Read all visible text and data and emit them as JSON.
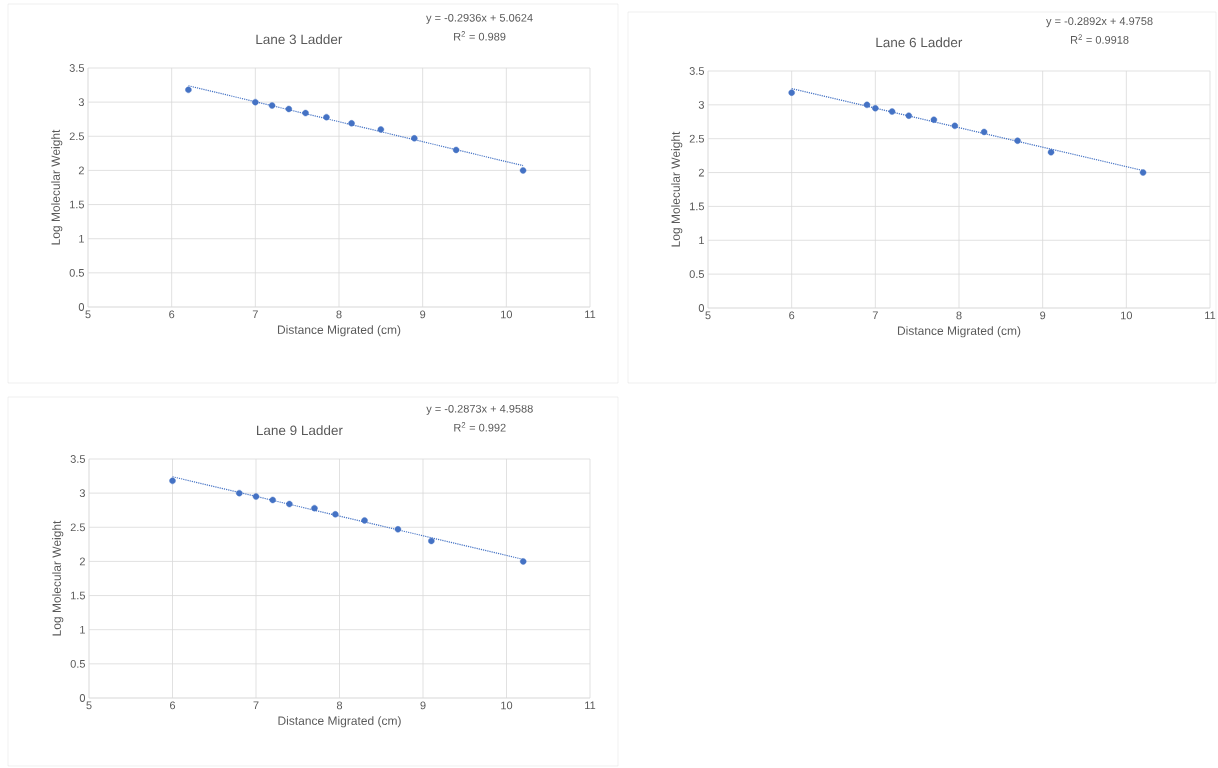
{
  "chart_data": [
    {
      "type": "scatter",
      "title": "Lane 3 Ladder",
      "xlabel": "Distance Migrated (cm)",
      "ylabel": "Log Molecular Weight",
      "annotations": [
        "y = -0.2936x + 5.0624",
        "R$^{2}$ = 0.989"
      ],
      "xlim": [
        5,
        11
      ],
      "ylim": [
        0,
        3.5
      ],
      "xticks": [
        5,
        6,
        7,
        8,
        9,
        10,
        11
      ],
      "yticks": [
        0,
        0.5,
        1,
        1.5,
        2,
        2.5,
        3,
        3.5
      ],
      "grid": true,
      "series": [
        {
          "color": "#4472c4",
          "marker": "circle",
          "x": [
            6.2,
            7.0,
            7.2,
            7.4,
            7.6,
            7.85,
            8.15,
            8.5,
            8.9,
            9.4,
            10.2
          ],
          "values": [
            3.18,
            3.0,
            2.95,
            2.9,
            2.84,
            2.78,
            2.69,
            2.6,
            2.47,
            2.3,
            2.0
          ]
        },
        {
          "type": "line",
          "color": "#4472c4",
          "marker": "none",
          "line_style": "dotted",
          "x": [
            6.2,
            10.2
          ],
          "values": [
            3.24,
            2.07
          ]
        }
      ]
    },
    {
      "type": "scatter",
      "title": "Lane 6 Ladder",
      "xlabel": "Distance Migrated (cm)",
      "ylabel": "Log Molecular Weight",
      "annotations": [
        "y = -0.2892x + 4.9758",
        "R$^{2}$ = 0.9918"
      ],
      "xlim": [
        5,
        11
      ],
      "ylim": [
        0,
        3.5
      ],
      "xticks": [
        5,
        6,
        7,
        8,
        9,
        10,
        11
      ],
      "yticks": [
        0,
        0.5,
        1,
        1.5,
        2,
        2.5,
        3,
        3.5
      ],
      "grid": true,
      "series": [
        {
          "color": "#4472c4",
          "marker": "circle",
          "x": [
            6.0,
            6.9,
            7.0,
            7.2,
            7.4,
            7.7,
            7.95,
            8.3,
            8.7,
            9.1,
            10.2
          ],
          "values": [
            3.18,
            3.0,
            2.95,
            2.9,
            2.84,
            2.78,
            2.69,
            2.6,
            2.47,
            2.3,
            2.0
          ]
        },
        {
          "type": "line",
          "color": "#4472c4",
          "marker": "none",
          "line_style": "dotted",
          "x": [
            6.0,
            10.2
          ],
          "values": [
            3.24,
            2.03
          ]
        }
      ]
    },
    {
      "type": "scatter",
      "title": "Lane 9 Ladder",
      "xlabel": "Distance Migrated (cm)",
      "ylabel": "Log Molecular Weight",
      "annotations": [
        "y = -0.2873x + 4.9588",
        "R$^{2}$ = 0.992"
      ],
      "xlim": [
        5,
        11
      ],
      "ylim": [
        0,
        3.5
      ],
      "xticks": [
        5,
        6,
        7,
        8,
        9,
        10,
        11
      ],
      "yticks": [
        0,
        0.5,
        1,
        1.5,
        2,
        2.5,
        3,
        3.5
      ],
      "grid": true,
      "series": [
        {
          "color": "#4472c4",
          "marker": "circle",
          "x": [
            6.0,
            6.8,
            7.0,
            7.2,
            7.4,
            7.7,
            7.95,
            8.3,
            8.7,
            9.1,
            10.2
          ],
          "values": [
            3.18,
            3.0,
            2.95,
            2.9,
            2.84,
            2.78,
            2.69,
            2.6,
            2.47,
            2.3,
            2.0
          ]
        },
        {
          "type": "line",
          "color": "#4472c4",
          "marker": "none",
          "line_style": "dotted",
          "x": [
            6.0,
            10.2
          ],
          "values": [
            3.24,
            2.03
          ]
        }
      ]
    }
  ]
}
